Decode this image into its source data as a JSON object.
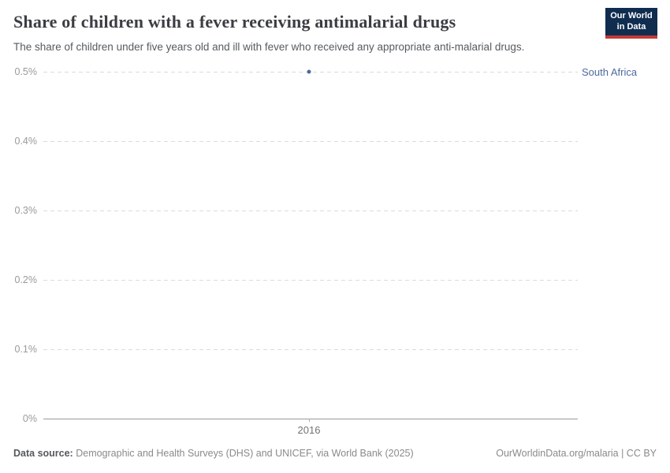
{
  "header": {
    "title": "Share of children with a fever receiving antimalarial drugs",
    "subtitle": "The share of children under five years old and ill with fever who received any appropriate anti-malarial drugs.",
    "logo": {
      "line1": "Our World",
      "line2": "in Data"
    }
  },
  "chart_data": {
    "type": "scatter",
    "title": "Share of children with a fever receiving antimalarial drugs",
    "xlabel": "",
    "ylabel": "",
    "ylim": [
      0,
      0.5
    ],
    "y_unit": "%",
    "grid": "horizontal-dashed",
    "legend_position": "right-of-point",
    "y_gridlines": [
      {
        "value": 0.5,
        "label": "0.5%"
      },
      {
        "value": 0.4,
        "label": "0.4%"
      },
      {
        "value": 0.3,
        "label": "0.3%"
      },
      {
        "value": 0.2,
        "label": "0.2%"
      },
      {
        "value": 0.1,
        "label": "0.1%"
      },
      {
        "value": 0,
        "label": "0%"
      }
    ],
    "x_ticks": [
      {
        "value": 2016,
        "label": "2016"
      }
    ],
    "series": [
      {
        "name": "South Africa",
        "color": "#4c6a9c",
        "x": [
          2016
        ],
        "y": [
          0.5
        ]
      }
    ]
  },
  "footer": {
    "datasource_label": "Data source:",
    "datasource_text": "Demographic and Health Surveys (DHS) and UNICEF, via World Bank (2025)",
    "credit": "OurWorldinData.org/malaria | CC BY"
  }
}
